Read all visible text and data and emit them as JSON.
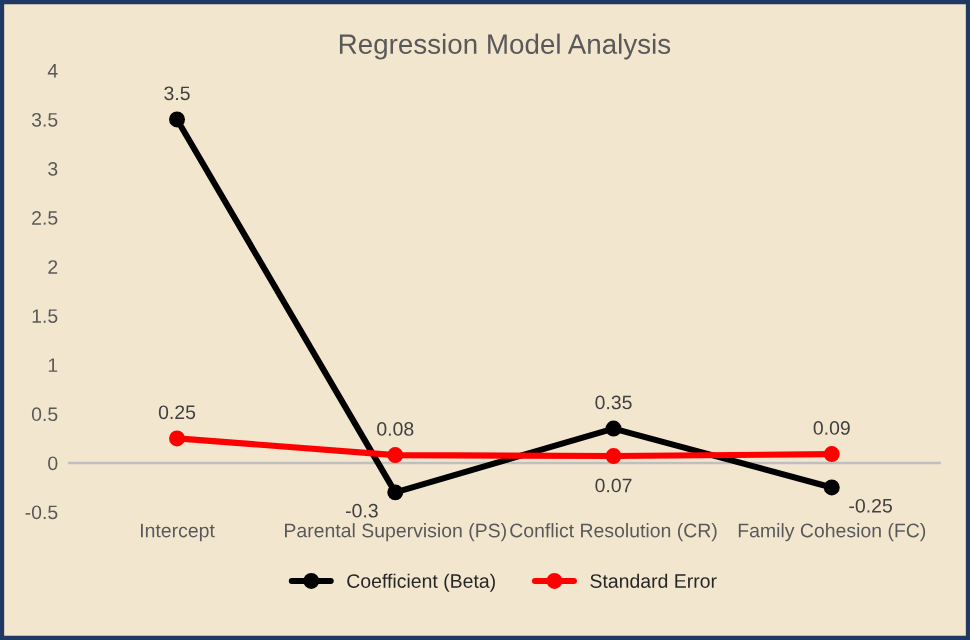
{
  "chart_data": {
    "type": "line",
    "title": "Regression Model Analysis",
    "categories": [
      "Intercept",
      "Parental Supervision (PS)",
      "Conflict Resolution (CR)",
      "Family Cohesion (FC)"
    ],
    "series": [
      {
        "name": "Coefficient (Beta)",
        "color": "#000000",
        "values": [
          3.5,
          -0.3,
          0.35,
          -0.25
        ]
      },
      {
        "name": "Standard Error",
        "color": "#ff0000",
        "values": [
          0.25,
          0.08,
          0.07,
          0.09
        ]
      }
    ],
    "ylim": [
      -0.5,
      4
    ],
    "yticks": [
      -0.5,
      0,
      0.5,
      1,
      1.5,
      2,
      2.5,
      3,
      3.5,
      4
    ],
    "ref_lines": [
      {
        "axis": "y",
        "value": 0,
        "color": "#bfbfbf",
        "line_style": "solid"
      }
    ],
    "data_labels": true,
    "marker": "circle",
    "line_style": "solid",
    "grid": false,
    "legend": "bottom"
  }
}
